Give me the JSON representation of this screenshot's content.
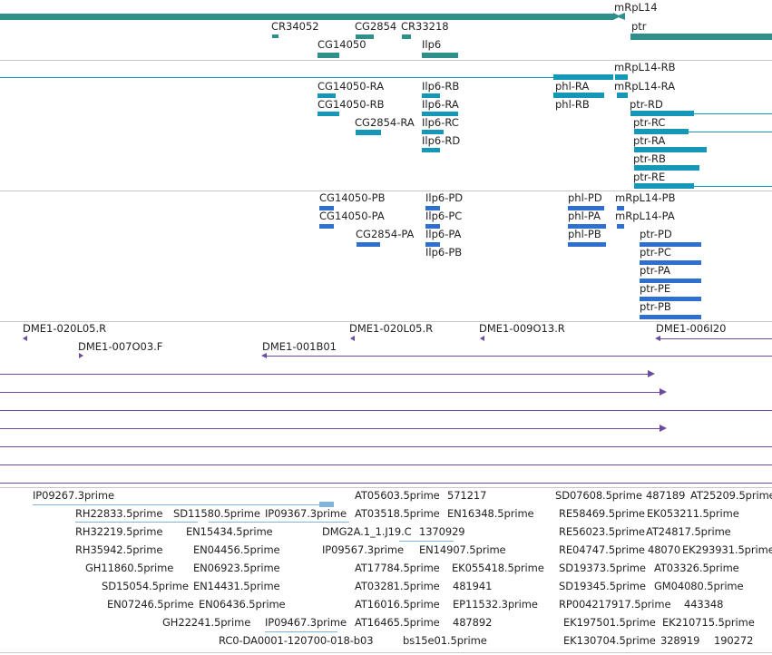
{
  "colors": {
    "gene": "#2f8f8a",
    "transcript": "#1597b7",
    "protein": "#2f6fd0",
    "probe": "#6b4aa0",
    "est": "#7fb5dc",
    "separator": "#c7c7c7"
  },
  "gene_track": {
    "labels": [
      "mRpL14",
      "CR34052",
      "CG2854",
      "CR33218",
      "ptr",
      "CG14050",
      "Ilp6"
    ]
  },
  "transcript_track": {
    "labels": [
      "mRpL14-RB",
      "CG14050-RA",
      "Ilp6-RB",
      "phl-RA",
      "mRpL14-RA",
      "CG14050-RB",
      "Ilp6-RA",
      "phl-RB",
      "ptr-RD",
      "CG2854-RA",
      "Ilp6-RC",
      "ptr-RC",
      "Ilp6-RD",
      "ptr-RA",
      "ptr-RB",
      "ptr-RE"
    ]
  },
  "protein_track": {
    "labels": [
      "CG14050-PB",
      "Ilp6-PD",
      "phl-PD",
      "mRpL14-PB",
      "CG14050-PA",
      "Ilp6-PC",
      "phl-PA",
      "mRpL14-PA",
      "CG2854-PA",
      "Ilp6-PA",
      "phl-PB",
      "ptr-PD",
      "Ilp6-PB",
      "ptr-PC",
      "ptr-PA",
      "ptr-PE",
      "ptr-PB"
    ]
  },
  "probe_track": {
    "labels": [
      "DME1-020L05.R",
      "DME1-020L05.R",
      "DME1-009O13.R",
      "DME1-006I20",
      "DME1-007O03.F",
      "DME1-001B01"
    ]
  },
  "est_track": {
    "labels": [
      "IP09267.3prime",
      "AT05603.5prime",
      "571217",
      "SD07608.5prime",
      "487189",
      "AT25209.5prime",
      "RH22833.5prime",
      "SD11580.5prime",
      "IP09367.3prime",
      "AT03518.5prime",
      "EN16348.5prime",
      "RE58469.5prime",
      "EK053211.5prime",
      "RH32219.5prime",
      "EN15434.5prime",
      "DMG2A.1_1.J19.C",
      "1370929",
      "RE56023.5prime",
      "AT24817.5prime",
      "RH35942.5prime",
      "EN04456.5prime",
      "IP09567.3prime",
      "EN14907.5prime",
      "RE04747.5prime",
      "48070",
      "EK293931.5prime",
      "GH11860.5prime",
      "EN06923.5prime",
      "AT17784.5prime",
      "EK055418.5prime",
      "SD19373.5prime",
      "AT03326.5prime",
      "SD15054.5prime",
      "EN14431.5prime",
      "AT03281.5prime",
      "481941",
      "SD19345.5prime",
      "GM04080.5prime",
      "EN07246.5prime",
      "EN06436.5prime",
      "AT16016.5prime",
      "EP11532.3prime",
      "RP004217917.5prime",
      "443348",
      "GH22241.5prime",
      "IP09467.3prime",
      "AT16465.5prime",
      "487892",
      "EK197501.5prime",
      "EK210715.5prime",
      "RC0-DA0001-120700-018-b03",
      "bs15e01.5prime",
      "EK130704.5prime",
      "328919",
      "190272"
    ]
  }
}
